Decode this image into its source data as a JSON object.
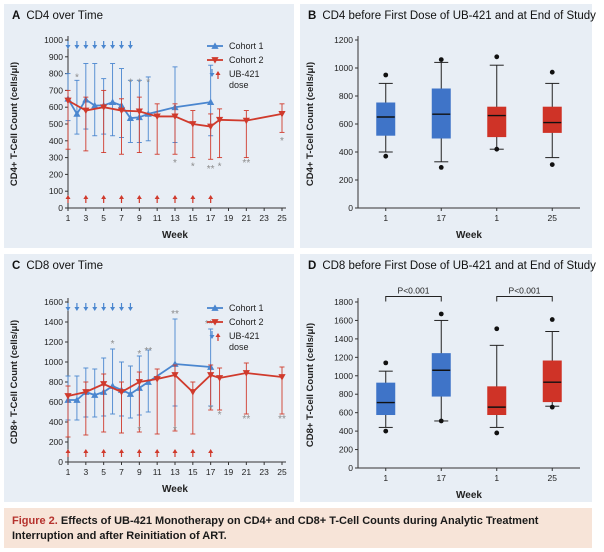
{
  "colors": {
    "cohort1": "#4a86cf",
    "cohort2": "#d03a2c",
    "box_blue": "#3f74c8",
    "box_red": "#cf3327",
    "star_gray": "#8c8c8c",
    "panel_bg": "#e8eef5",
    "caption_bg": "#f7e4d8",
    "caption_label": "#b5322d"
  },
  "panels": [
    {
      "letter": "A",
      "title": "CD4 over Time"
    },
    {
      "letter": "B",
      "title": "CD4 before First Dose of UB-421 and at End of Study"
    },
    {
      "letter": "C",
      "title": "CD8 over Time"
    },
    {
      "letter": "D",
      "title": "CD8 before First Dose of UB-421 and at End of Study"
    }
  ],
  "caption": {
    "label": "Figure 2.",
    "text": "Effects of UB-421 Monotherapy on CD4+ and CD8+ T-Cell Counts during Analytic Treatment Interruption and after Reinitiation of ART."
  },
  "chart_data": [
    {
      "panel": "A",
      "type": "line",
      "title": "CD4 over Time",
      "xlabel": "Week",
      "ylabel": "CD4+ T-Cell Count (cells/μl)",
      "xlim": [
        1,
        25
      ],
      "xticks": [
        1,
        3,
        5,
        7,
        9,
        11,
        13,
        15,
        17,
        19,
        21,
        23,
        25
      ],
      "ylim": [
        0,
        1000
      ],
      "yticks": [
        0,
        100,
        200,
        300,
        400,
        500,
        600,
        700,
        800,
        900,
        1000
      ],
      "legend": {
        "position": "top-right",
        "entries": [
          {
            "label": "Cohort 1",
            "color": "#4a86cf",
            "marker": "triangle-up"
          },
          {
            "label": "Cohort 2",
            "color": "#d03a2c",
            "marker": "triangle-down"
          },
          {
            "label": "UB-421",
            "label2": "dose",
            "marker": "arrows"
          }
        ]
      },
      "dose_arrows": {
        "cohort1_weeks": [
          1,
          2,
          3,
          4,
          5,
          6,
          7,
          8
        ],
        "cohort2_weeks": [
          1,
          3,
          5,
          7,
          9,
          11,
          13,
          15,
          17
        ]
      },
      "series": [
        {
          "name": "Cohort 1",
          "color": "#4a86cf",
          "marker": "triangle-up",
          "x": [
            1,
            2,
            3,
            4,
            5,
            6,
            7,
            8,
            9,
            10,
            13,
            17
          ],
          "y": [
            650,
            560,
            645,
            610,
            610,
            630,
            610,
            535,
            540,
            560,
            600,
            630
          ],
          "err_upper": [
            800,
            760,
            860,
            860,
            770,
            860,
            830,
            760,
            760,
            780,
            840,
            850
          ],
          "err_lower": [
            520,
            440,
            470,
            430,
            440,
            430,
            420,
            390,
            390,
            400,
            390,
            430
          ]
        },
        {
          "name": "Cohort 2",
          "color": "#d03a2c",
          "marker": "triangle-down",
          "x": [
            1,
            3,
            5,
            7,
            9,
            11,
            13,
            15,
            17,
            18,
            21,
            25
          ],
          "y": [
            640,
            580,
            600,
            580,
            575,
            545,
            545,
            500,
            485,
            525,
            520,
            560
          ],
          "err_upper": [
            700,
            660,
            700,
            650,
            660,
            620,
            620,
            580,
            560,
            590,
            580,
            620
          ],
          "err_lower": [
            350,
            340,
            330,
            320,
            330,
            320,
            320,
            300,
            290,
            300,
            300,
            450
          ]
        }
      ],
      "annotations": [
        {
          "text": "*",
          "x": 2,
          "y": 760,
          "color": "#8c8c8c"
        },
        {
          "text": "*",
          "x": 8,
          "y": 730,
          "color": "#8c8c8c"
        },
        {
          "text": "*",
          "x": 9,
          "y": 730,
          "color": "#8c8c8c"
        },
        {
          "text": "*",
          "x": 10,
          "y": 730,
          "color": "#8c8c8c"
        },
        {
          "text": "*",
          "x": 13,
          "y": 250,
          "color": "#8c8c8c"
        },
        {
          "text": "*",
          "x": 15,
          "y": 230,
          "color": "#8c8c8c"
        },
        {
          "text": "**",
          "x": 17,
          "y": 215,
          "color": "#8c8c8c"
        },
        {
          "text": "*",
          "x": 18,
          "y": 230,
          "color": "#8c8c8c"
        },
        {
          "text": "**",
          "x": 21,
          "y": 250,
          "color": "#8c8c8c"
        },
        {
          "text": "*",
          "x": 25,
          "y": 380,
          "color": "#8c8c8c"
        }
      ]
    },
    {
      "panel": "B",
      "type": "box",
      "title": "CD4 before First Dose of UB-421 and at End of Study",
      "xlabel": "Week",
      "ylabel": "CD4+ T-Cell Count (cells/μl)",
      "ylim": [
        0,
        1200
      ],
      "yticks": [
        0,
        200,
        400,
        600,
        800,
        1000,
        1200
      ],
      "categories": [
        "1",
        "17",
        "1",
        "25"
      ],
      "boxes": [
        {
          "category": "1",
          "color": "#3f74c8",
          "whisker_low": 400,
          "q1": 520,
          "median": 650,
          "q3": 750,
          "whisker_high": 890,
          "outliers": [
            950,
            370
          ]
        },
        {
          "category": "17",
          "color": "#3f74c8",
          "whisker_low": 330,
          "q1": 500,
          "median": 670,
          "q3": 850,
          "whisker_high": 1040,
          "outliers": [
            1060,
            290
          ]
        },
        {
          "category": "1",
          "color": "#cf3327",
          "whisker_low": 420,
          "q1": 510,
          "median": 660,
          "q3": 720,
          "whisker_high": 1020,
          "outliers": [
            1080,
            420
          ]
        },
        {
          "category": "25",
          "color": "#cf3327",
          "whisker_low": 360,
          "q1": 540,
          "median": 610,
          "q3": 720,
          "whisker_high": 890,
          "outliers": [
            970,
            310
          ]
        }
      ]
    },
    {
      "panel": "C",
      "type": "line",
      "title": "CD8 over Time",
      "xlabel": "Week",
      "ylabel": "CD8+ T-Cell Count (cells/μl)",
      "xlim": [
        1,
        25
      ],
      "xticks": [
        1,
        3,
        5,
        7,
        9,
        11,
        13,
        15,
        17,
        19,
        21,
        23,
        25
      ],
      "ylim": [
        0,
        1600
      ],
      "yticks": [
        0,
        200,
        400,
        600,
        800,
        1000,
        1200,
        1400,
        1600
      ],
      "legend": {
        "position": "top-right",
        "entries": [
          {
            "label": "Cohort 1",
            "color": "#4a86cf",
            "marker": "triangle-up"
          },
          {
            "label": "Cohort 2",
            "color": "#d03a2c",
            "marker": "triangle-down"
          },
          {
            "label": "UB-421",
            "label2": "dose",
            "marker": "arrows"
          }
        ]
      },
      "dose_arrows": {
        "cohort1_weeks": [
          1,
          2,
          3,
          4,
          5,
          6,
          7,
          8
        ],
        "cohort2_weeks": [
          1,
          3,
          5,
          7,
          9,
          11,
          13,
          15,
          17
        ]
      },
      "series": [
        {
          "name": "Cohort 1",
          "color": "#4a86cf",
          "marker": "triangle-up",
          "x": [
            1,
            2,
            3,
            4,
            5,
            6,
            7,
            8,
            9,
            10,
            13,
            17
          ],
          "y": [
            620,
            620,
            700,
            670,
            700,
            760,
            720,
            680,
            740,
            800,
            980,
            950
          ],
          "err_upper": [
            860,
            860,
            940,
            930,
            1040,
            1130,
            1000,
            960,
            1060,
            1120,
            1430,
            1330
          ],
          "err_lower": [
            420,
            420,
            450,
            450,
            460,
            480,
            460,
            440,
            470,
            500,
            560,
            560
          ]
        },
        {
          "name": "Cohort 2",
          "color": "#d03a2c",
          "marker": "triangle-down",
          "x": [
            1,
            3,
            5,
            7,
            9,
            11,
            13,
            15,
            17,
            18,
            21,
            25
          ],
          "y": [
            660,
            700,
            780,
            700,
            800,
            830,
            870,
            700,
            870,
            840,
            890,
            850
          ],
          "err_upper": [
            760,
            800,
            880,
            800,
            900,
            930,
            970,
            800,
            970,
            940,
            990,
            950
          ],
          "err_lower": [
            250,
            270,
            300,
            290,
            300,
            280,
            310,
            280,
            520,
            520,
            480,
            480
          ]
        }
      ],
      "annotations": [
        {
          "text": "*",
          "x": 6,
          "y": 1150,
          "color": "#8c8c8c"
        },
        {
          "text": "*",
          "x": 9,
          "y": 1050,
          "color": "#8c8c8c"
        },
        {
          "text": "**",
          "x": 10,
          "y": 1080,
          "color": "#8c8c8c"
        },
        {
          "text": "**",
          "x": 13,
          "y": 1450,
          "color": "#8c8c8c"
        },
        {
          "text": "***",
          "x": 17,
          "y": 1350,
          "color": "#8c8c8c"
        },
        {
          "text": "*",
          "x": 9,
          "y": 290,
          "color": "#8c8c8c"
        },
        {
          "text": "*",
          "x": 13,
          "y": 290,
          "color": "#8c8c8c"
        },
        {
          "text": "*",
          "x": 17,
          "y": 500,
          "color": "#8c8c8c"
        },
        {
          "text": "*",
          "x": 18,
          "y": 440,
          "color": "#8c8c8c"
        },
        {
          "text": "**",
          "x": 21,
          "y": 400,
          "color": "#8c8c8c"
        },
        {
          "text": "**",
          "x": 25,
          "y": 400,
          "color": "#8c8c8c"
        }
      ]
    },
    {
      "panel": "D",
      "type": "box",
      "title": "CD8 before First Dose of UB-421 and at End of Study",
      "xlabel": "Week",
      "ylabel": "CD8+ T-Cell Count (cells/μl)",
      "ylim": [
        0,
        1800
      ],
      "yticks": [
        0,
        200,
        400,
        600,
        800,
        1000,
        1200,
        1400,
        1600,
        1800
      ],
      "categories": [
        "1",
        "17",
        "1",
        "25"
      ],
      "boxes": [
        {
          "category": "1",
          "color": "#3f74c8",
          "whisker_low": 440,
          "q1": 580,
          "median": 710,
          "q3": 920,
          "whisker_high": 1050,
          "outliers": [
            1140,
            400
          ]
        },
        {
          "category": "17",
          "color": "#3f74c8",
          "whisker_low": 510,
          "q1": 780,
          "median": 1060,
          "q3": 1240,
          "whisker_high": 1600,
          "outliers": [
            1670,
            510
          ]
        },
        {
          "category": "1",
          "color": "#cf3327",
          "whisker_low": 440,
          "q1": 580,
          "median": 660,
          "q3": 880,
          "whisker_high": 1330,
          "outliers": [
            1510,
            380
          ]
        },
        {
          "category": "25",
          "color": "#cf3327",
          "whisker_low": 670,
          "q1": 720,
          "median": 930,
          "q3": 1160,
          "whisker_high": 1480,
          "outliers": [
            1610,
            660
          ]
        }
      ],
      "comparisons": [
        {
          "from": 0,
          "to": 1,
          "label": "P<0.001",
          "y": 1860
        },
        {
          "from": 2,
          "to": 3,
          "label": "P<0.001",
          "y": 1860
        }
      ]
    }
  ]
}
